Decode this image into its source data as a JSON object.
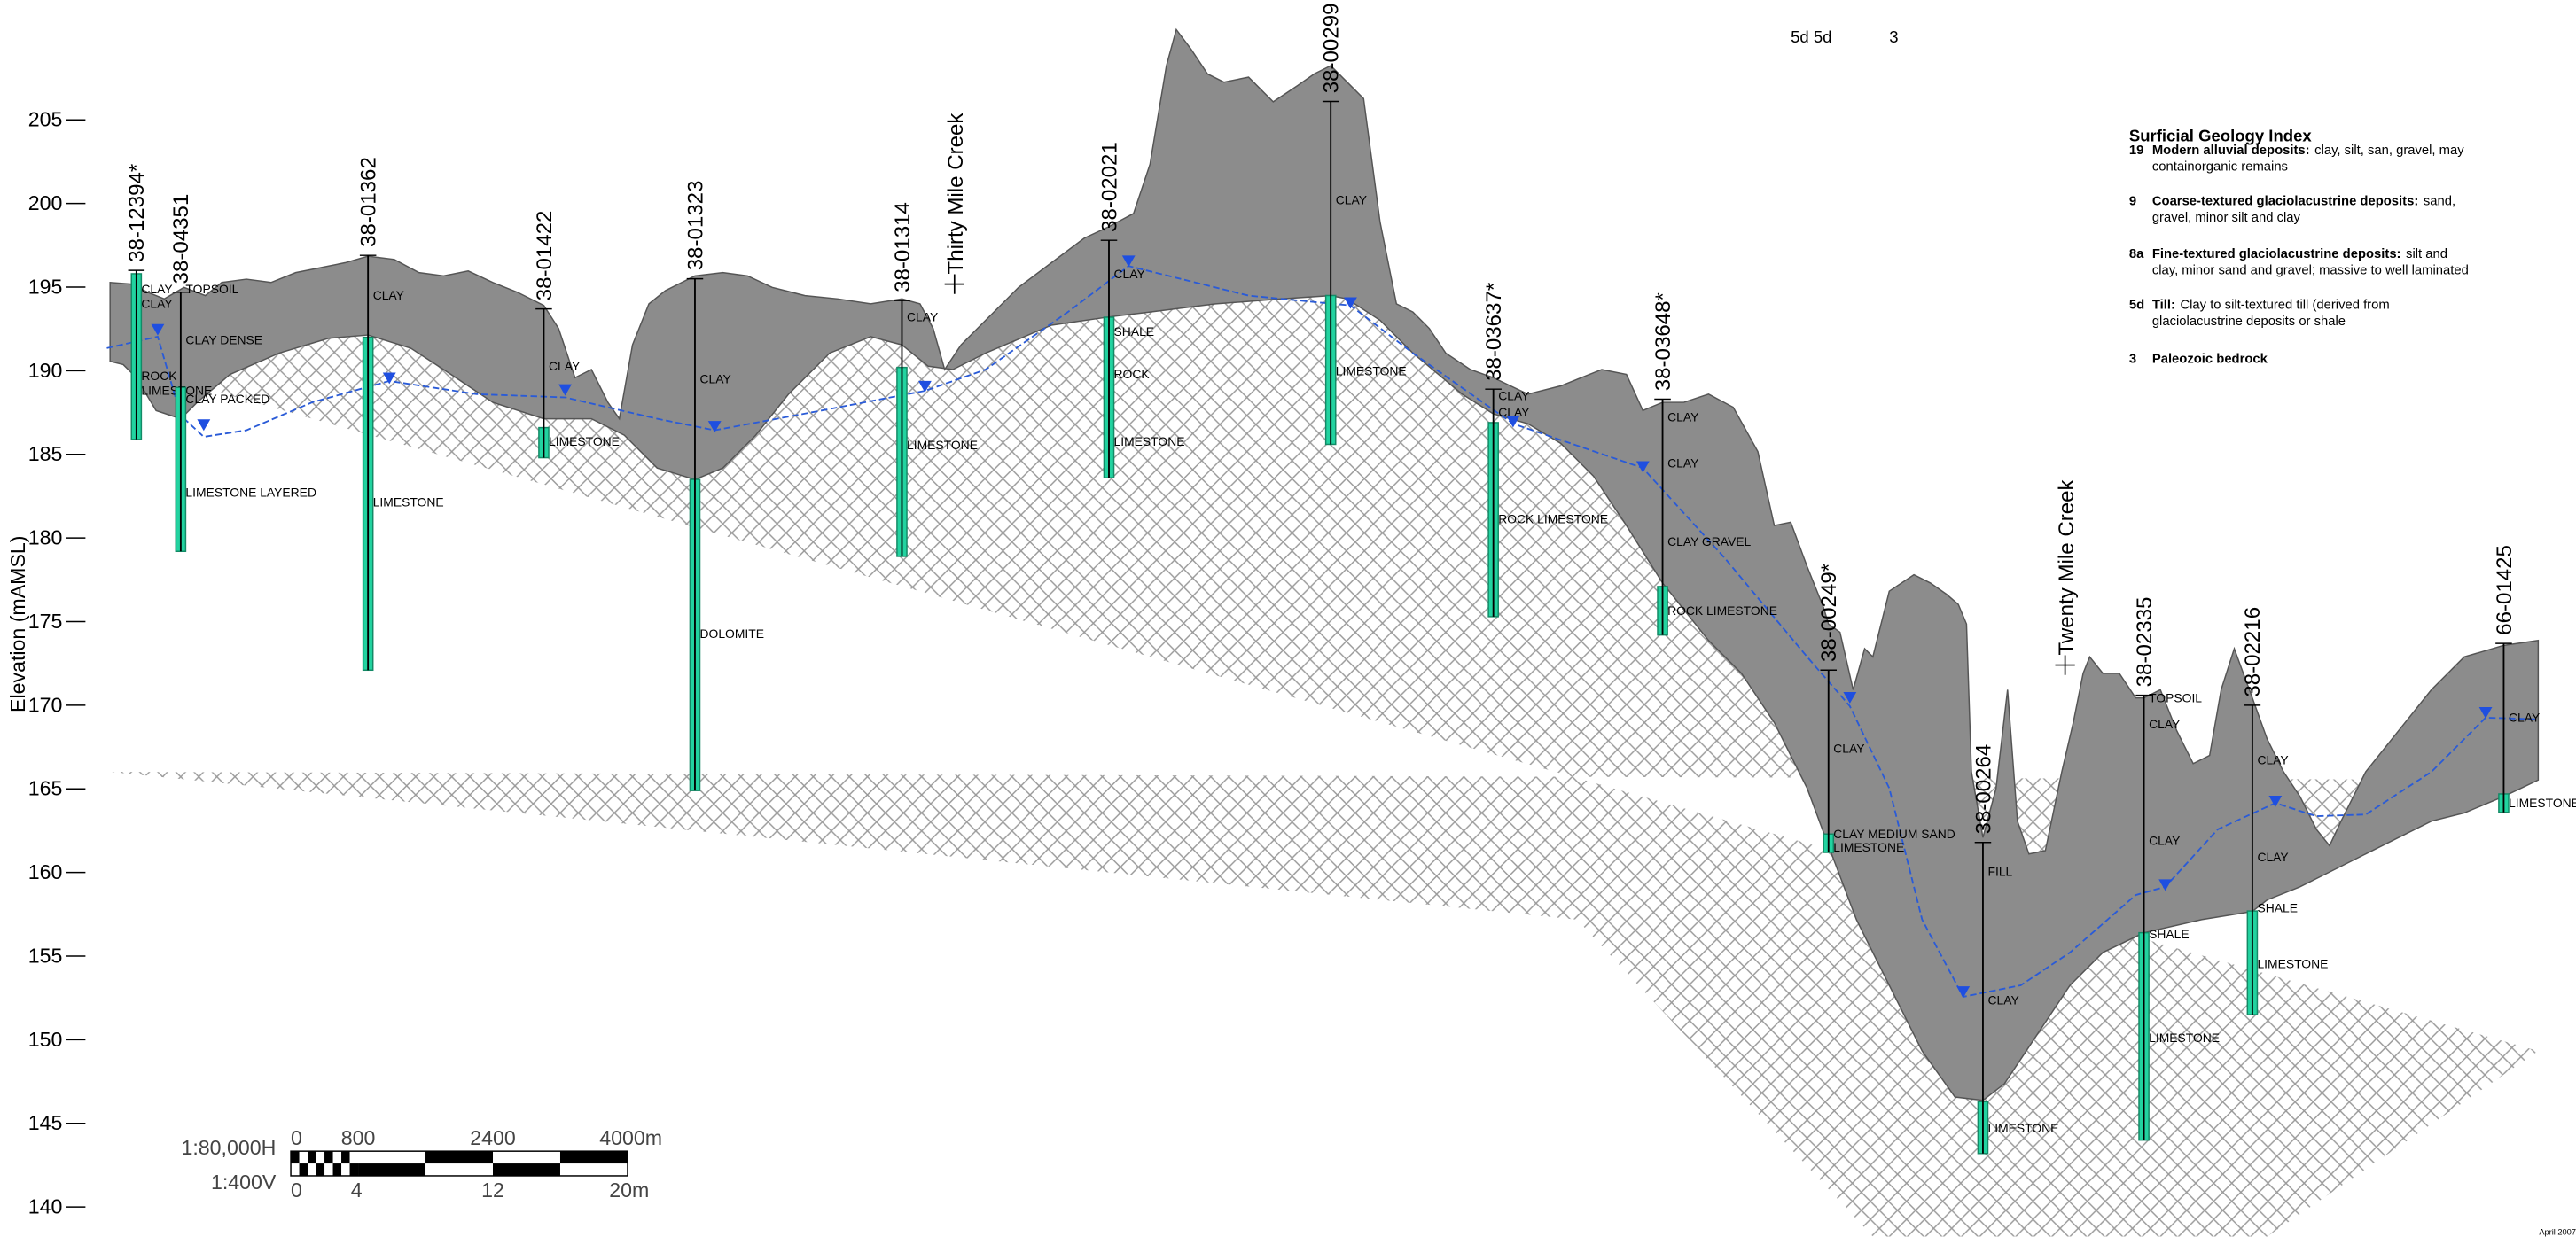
{
  "axis": {
    "label": "Elevation (mAMSL)",
    "ylim": [
      140,
      205
    ],
    "yticks": [
      140,
      145,
      150,
      155,
      160,
      165,
      170,
      175,
      180,
      185,
      190,
      195,
      200,
      205
    ]
  },
  "header_codes": [
    "5d 5d",
    "3"
  ],
  "boreholes": [
    {
      "name": "38-12394*",
      "top": 196.0,
      "bottom": 185.9,
      "screen": [
        195.8,
        185.9
      ],
      "water_level": 192.4,
      "layers": [
        "CLAY",
        "CLAY",
        "ROCK",
        "LIMESTONE"
      ]
    },
    {
      "name": "38-04351",
      "top": 194.7,
      "bottom": 179.2,
      "screen": [
        189.0,
        179.2
      ],
      "water_level": 186.7,
      "layers": [
        "TOPSOIL",
        "CLAY DENSE",
        "CLAY PACKED",
        "LIMESTONE LAYERED"
      ]
    },
    {
      "name": "38-01362",
      "top": 196.9,
      "bottom": 172.1,
      "screen": [
        192.0,
        172.1
      ],
      "water_level": 189.5,
      "layers": [
        "CLAY",
        "LIMESTONE"
      ]
    },
    {
      "name": "38-01422",
      "top": 193.7,
      "bottom": 184.8,
      "screen": [
        186.6,
        184.8
      ],
      "water_level": 188.8,
      "layers": [
        "CLAY",
        "LIMESTONE"
      ]
    },
    {
      "name": "38-01323",
      "top": 195.5,
      "bottom": 164.9,
      "screen": [
        183.5,
        164.9
      ],
      "water_level": 186.6,
      "layers": [
        "CLAY",
        "DOLOMITE"
      ]
    },
    {
      "name": "38-01314",
      "top": 194.2,
      "bottom": 178.9,
      "screen": [
        190.2,
        178.9
      ],
      "water_level": 189.0,
      "layers": [
        "CLAY",
        "LIMESTONE"
      ]
    },
    {
      "name": "38-02021",
      "top": 197.8,
      "bottom": 183.6,
      "screen": [
        193.2,
        183.6
      ],
      "water_level": 196.5,
      "layers": [
        "CLAY",
        "SHALE",
        "ROCK",
        "LIMESTONE"
      ]
    },
    {
      "name": "38-00299",
      "top": 206.1,
      "bottom": 185.6,
      "screen": [
        194.5,
        185.6
      ],
      "water_level": 194.0,
      "layers": [
        "CLAY",
        "LIMESTONE"
      ]
    },
    {
      "name": "38-03637*",
      "top": 188.9,
      "bottom": 175.3,
      "screen": [
        186.9,
        175.3
      ],
      "water_level": 186.9,
      "layers": [
        "CLAY",
        "CLAY",
        "ROCK LIMESTONE"
      ]
    },
    {
      "name": "38-03648*",
      "top": 188.3,
      "bottom": 174.2,
      "screen": [
        177.1,
        174.2
      ],
      "water_level": 184.2,
      "layers": [
        "CLAY",
        "CLAY",
        "CLAY GRAVEL",
        "ROCK LIMESTONE"
      ]
    },
    {
      "name": "38-00249*",
      "top": 172.1,
      "bottom": 161.2,
      "screen": [
        162.3,
        161.2
      ],
      "water_level": 170.4,
      "layers": [
        "CLAY",
        "CLAY MEDIUM SAND",
        "LIMESTONE"
      ]
    },
    {
      "name": "38-00264",
      "top": 161.8,
      "bottom": 143.2,
      "screen": [
        146.3,
        143.2
      ],
      "water_level": 152.8,
      "layers": [
        "FILL",
        "CLAY",
        "LIMESTONE"
      ]
    },
    {
      "name": "38-02335",
      "top": 170.6,
      "bottom": 144.0,
      "screen": [
        156.4,
        144.0
      ],
      "water_level": 159.2,
      "layers": [
        "TOPSOIL",
        "CLAY",
        "CLAY",
        "SHALE",
        "LIMESTONE"
      ]
    },
    {
      "name": "38-02216",
      "top": 170.0,
      "bottom": 151.5,
      "screen": [
        157.7,
        151.5
      ],
      "water_level": 164.2,
      "layers": [
        "CLAY",
        "CLAY",
        "SHALE",
        "LIMESTONE"
      ]
    },
    {
      "name": "66-01425",
      "top": 173.7,
      "bottom": 163.6,
      "screen": [
        164.7,
        163.6
      ],
      "water_level": 169.5,
      "layers": [
        "CLAY",
        "LIMESTONE"
      ]
    }
  ],
  "creeks": [
    "Thirty Mile Creek",
    "Twenty Mile Creek"
  ],
  "legend": {
    "title": "Surficial Geology Index",
    "entries": [
      {
        "code": "19",
        "name": "Modern alluvial deposits:",
        "lines": [
          "clay, silt, san, gravel, may",
          "containorganic remains"
        ]
      },
      {
        "code": "9",
        "name": "Coarse-textured glaciolacustrine deposits:",
        "lines": [
          "sand,",
          "gravel, minor silt and clay"
        ]
      },
      {
        "code": "8a",
        "name": "Fine-textured glaciolacustrine deposits:",
        "lines": [
          "silt and",
          "clay, minor sand and gravel; massive to well laminated"
        ]
      },
      {
        "code": "5d",
        "name": "Till:",
        "lines": [
          "Clay to silt-textured till (derived from",
          "glaciolacustrine deposits or shale"
        ]
      },
      {
        "code": "3",
        "name": "Paleozoic bedrock",
        "lines": []
      }
    ]
  },
  "scale": {
    "horizontal": "1:80,000H",
    "vertical": "1:400V",
    "horizontal_labels": [
      "0",
      "800",
      "2400",
      "4000m"
    ],
    "vertical_labels": [
      "0",
      "4",
      "12",
      "20m"
    ]
  },
  "date": "April 2007"
}
